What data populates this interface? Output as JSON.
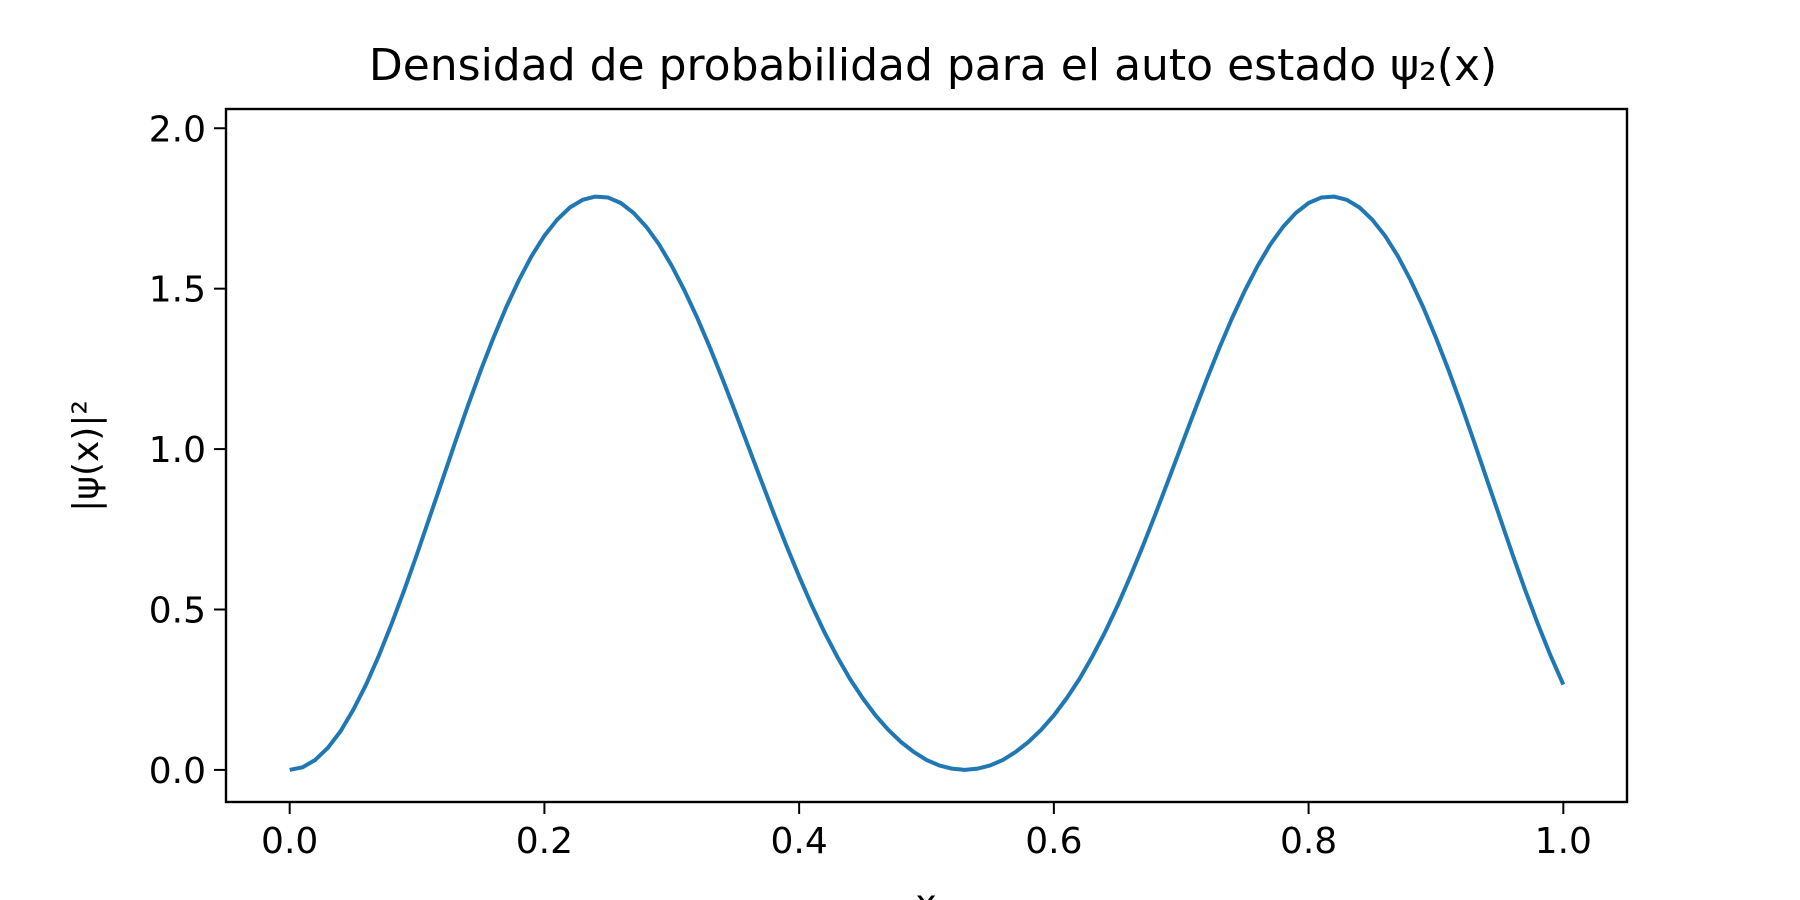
{
  "chart_data": {
    "type": "line",
    "title": "Densidad de probabilidad para el auto estado ψ₂(x)",
    "xlabel": "x",
    "ylabel": "|ψ(x)|²",
    "xlim": [
      -0.05,
      1.05
    ],
    "ylim": [
      -0.1,
      2.06
    ],
    "xticks": [
      0.0,
      0.2,
      0.4,
      0.6,
      0.8,
      1.0
    ],
    "xtick_labels": [
      "0.0",
      "0.2",
      "0.4",
      "0.6",
      "0.8",
      "1.0"
    ],
    "yticks": [
      0.0,
      0.5,
      1.0,
      1.5,
      2.0
    ],
    "ytick_labels": [
      "0.0",
      "0.5",
      "1.0",
      "1.5",
      "2.0"
    ],
    "grid": false,
    "series": [
      {
        "color": "#1f77b4",
        "x": [
          0.0,
          0.01,
          0.02,
          0.03,
          0.04,
          0.05,
          0.06,
          0.07,
          0.08,
          0.09,
          0.1,
          0.11,
          0.12,
          0.13,
          0.14,
          0.15,
          0.16,
          0.17,
          0.18,
          0.19,
          0.2,
          0.21,
          0.22,
          0.23,
          0.24,
          0.25,
          0.26,
          0.27,
          0.28,
          0.29,
          0.3,
          0.31,
          0.32,
          0.33,
          0.34,
          0.35,
          0.36,
          0.37,
          0.38,
          0.39,
          0.4,
          0.41,
          0.42,
          0.43,
          0.44,
          0.45,
          0.46,
          0.47,
          0.48,
          0.49,
          0.5,
          0.51,
          0.52,
          0.53,
          0.54,
          0.55,
          0.56,
          0.57,
          0.58,
          0.59,
          0.6,
          0.61,
          0.62,
          0.63,
          0.64,
          0.65,
          0.66,
          0.67,
          0.68,
          0.69,
          0.7,
          0.71,
          0.72,
          0.73,
          0.74,
          0.75,
          0.76,
          0.77,
          0.78,
          0.79,
          0.8,
          0.81,
          0.82,
          0.83,
          0.84,
          0.85,
          0.86,
          0.87,
          0.88,
          0.89,
          0.9,
          0.91,
          0.92,
          0.93,
          0.94,
          0.95,
          0.96,
          0.97,
          0.98,
          0.99,
          1.0
        ],
        "y": [
          0.0,
          0.008,
          0.031,
          0.069,
          0.121,
          0.188,
          0.266,
          0.356,
          0.455,
          0.561,
          0.673,
          0.789,
          0.905,
          1.022,
          1.136,
          1.245,
          1.347,
          1.442,
          1.527,
          1.602,
          1.665,
          1.715,
          1.753,
          1.777,
          1.787,
          1.784,
          1.767,
          1.736,
          1.693,
          1.638,
          1.571,
          1.494,
          1.409,
          1.316,
          1.217,
          1.114,
          1.009,
          0.904,
          0.8,
          0.699,
          0.603,
          0.512,
          0.428,
          0.352,
          0.283,
          0.223,
          0.17,
          0.125,
          0.087,
          0.056,
          0.031,
          0.014,
          0.004,
          0.0,
          0.004,
          0.014,
          0.031,
          0.056,
          0.087,
          0.125,
          0.17,
          0.223,
          0.283,
          0.352,
          0.428,
          0.512,
          0.603,
          0.699,
          0.8,
          0.904,
          1.009,
          1.114,
          1.217,
          1.316,
          1.409,
          1.494,
          1.571,
          1.638,
          1.693,
          1.736,
          1.767,
          1.784,
          1.787,
          1.777,
          1.753,
          1.715,
          1.665,
          1.602,
          1.527,
          1.442,
          1.347,
          1.245,
          1.136,
          1.022,
          0.905,
          0.789,
          0.673,
          0.561,
          0.455,
          0.356,
          0.266
        ]
      }
    ]
  }
}
